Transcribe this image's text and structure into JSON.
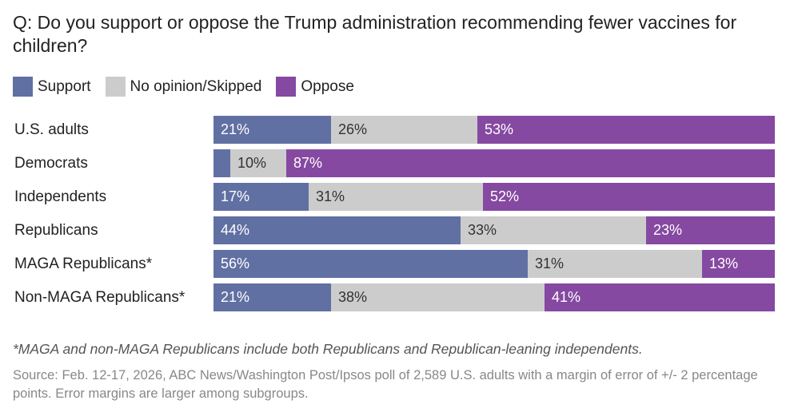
{
  "title": "Q: Do you support or oppose the Trump administration recommending fewer vaccines for children?",
  "colors": {
    "support": "#6170a3",
    "neutral": "#cccccc",
    "oppose": "#8549a1"
  },
  "legend": [
    {
      "key": "support",
      "label": "Support"
    },
    {
      "key": "neutral",
      "label": "No opinion/Skipped"
    },
    {
      "key": "oppose",
      "label": "Oppose"
    }
  ],
  "footnote": "*MAGA and non-MAGA Republicans include both Republicans and Republican-leaning independents.",
  "source": "Source: Feb. 12-17, 2026, ABC News/Washington Post/Ipsos poll of 2,589 U.S. adults with a margin of error of +/- 2 percentage points. Error margins are larger among subgroups.",
  "chart_data": {
    "type": "bar",
    "orientation": "horizontal",
    "stacked": true,
    "title": "Q: Do you support or oppose the Trump administration recommending fewer vaccines for children?",
    "xlabel": "",
    "ylabel": "",
    "xlim": [
      0,
      100
    ],
    "legend_position": "top-left",
    "categories": [
      "U.S. adults",
      "Democrats",
      "Independents",
      "Republicans",
      "MAGA Republicans*",
      "Non-MAGA Republicans*"
    ],
    "series": [
      {
        "name": "Support",
        "key": "support",
        "values": [
          21,
          3,
          17,
          44,
          56,
          21
        ],
        "labels": [
          "21%",
          "",
          "17%",
          "44%",
          "56%",
          "21%"
        ]
      },
      {
        "name": "No opinion/Skipped",
        "key": "neutral",
        "values": [
          26,
          10,
          31,
          33,
          31,
          38
        ],
        "labels": [
          "26%",
          "10%",
          "31%",
          "33%",
          "31%",
          "38%"
        ]
      },
      {
        "name": "Oppose",
        "key": "oppose",
        "values": [
          53,
          87,
          52,
          23,
          13,
          41
        ],
        "labels": [
          "53%",
          "87%",
          "52%",
          "23%",
          "13%",
          "41%"
        ]
      }
    ]
  }
}
